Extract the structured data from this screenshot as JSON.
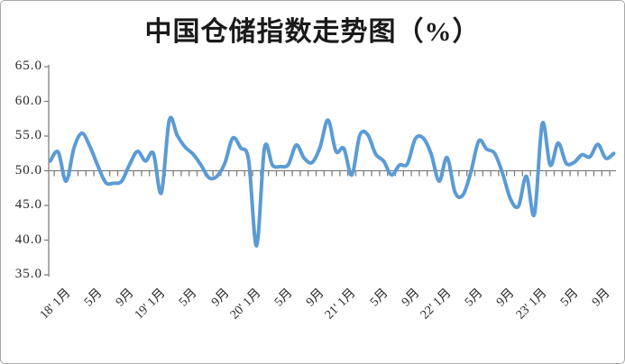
{
  "window": {
    "background": "#ffffff",
    "border_color": "#a9a9a9"
  },
  "chart": {
    "title": "中国仓储指数走势图（%）",
    "line_color": "#5B9BD5",
    "axis_color": "#7f7f7f",
    "text_color": "#262626",
    "y_axis": {
      "min": 35,
      "max": 65,
      "step": 5,
      "tick_labels": [
        "65.0",
        "60.0",
        "55.0",
        "50.0",
        "45.0",
        "40.0",
        "35.0"
      ],
      "x_axis_crosses_at": 50
    },
    "x_axis": {
      "labels": [
        {
          "text": "18' 1月",
          "index": 1
        },
        {
          "text": "5月",
          "index": 5
        },
        {
          "text": "9月",
          "index": 9
        },
        {
          "text": "19' 1月",
          "index": 13
        },
        {
          "text": "5月",
          "index": 17
        },
        {
          "text": "9月",
          "index": 21
        },
        {
          "text": "20' 1月",
          "index": 25
        },
        {
          "text": "5月",
          "index": 29
        },
        {
          "text": "9月",
          "index": 33
        },
        {
          "text": "21' 1月",
          "index": 37
        },
        {
          "text": "5月",
          "index": 41
        },
        {
          "text": "9月",
          "index": 45
        },
        {
          "text": "22' 1月",
          "index": 49
        },
        {
          "text": "5月",
          "index": 53
        },
        {
          "text": "9月",
          "index": 57
        },
        {
          "text": "23' 1月",
          "index": 61
        },
        {
          "text": "5月",
          "index": 65
        },
        {
          "text": "9月",
          "index": 69
        }
      ]
    }
  },
  "chart_data": {
    "type": "line",
    "title": "中国仓储指数走势图（%）",
    "series_name": "中国仓储指数",
    "unit": "%",
    "smoothed": true,
    "grid": false,
    "legend": "none",
    "ylim": [
      35,
      65
    ],
    "x_axis_crosses_y_at": 50,
    "months": [
      "2017-12",
      "2018-01",
      "2018-02",
      "2018-03",
      "2018-04",
      "2018-05",
      "2018-06",
      "2018-07",
      "2018-08",
      "2018-09",
      "2018-10",
      "2018-11",
      "2018-12",
      "2019-01",
      "2019-02",
      "2019-03",
      "2019-04",
      "2019-05",
      "2019-06",
      "2019-07",
      "2019-08",
      "2019-09",
      "2019-10",
      "2019-11",
      "2019-12",
      "2020-01",
      "2020-02",
      "2020-03",
      "2020-04",
      "2020-05",
      "2020-06",
      "2020-07",
      "2020-08",
      "2020-09",
      "2020-10",
      "2020-11",
      "2020-12",
      "2021-01",
      "2021-02",
      "2021-03",
      "2021-04",
      "2021-05",
      "2021-06",
      "2021-07",
      "2021-08",
      "2021-09",
      "2021-10",
      "2021-11",
      "2021-12",
      "2022-01",
      "2022-02",
      "2022-03",
      "2022-04",
      "2022-05",
      "2022-06",
      "2022-07",
      "2022-08",
      "2022-09",
      "2022-10",
      "2022-11",
      "2022-12",
      "2023-01",
      "2023-02",
      "2023-03",
      "2023-04",
      "2023-05",
      "2023-06",
      "2023-07",
      "2023-08",
      "2023-09",
      "2023-10",
      "2023-11"
    ],
    "values": [
      51.4,
      52.7,
      48.5,
      53.3,
      55.4,
      53.5,
      50.7,
      48.3,
      48.2,
      48.5,
      50.9,
      52.8,
      51.4,
      52.5,
      46.8,
      57.3,
      55.1,
      53.4,
      52.4,
      50.8,
      49.0,
      49.2,
      51.1,
      54.7,
      53.3,
      51.5,
      39.2,
      53.3,
      50.8,
      50.6,
      50.9,
      53.7,
      51.8,
      51.2,
      53.4,
      57.3,
      52.8,
      53.2,
      49.4,
      55.1,
      55.2,
      52.4,
      51.4,
      49.4,
      50.8,
      51.0,
      54.6,
      54.7,
      52.4,
      48.5,
      51.9,
      46.9,
      46.5,
      49.8,
      54.3,
      53.1,
      52.5,
      49.6,
      45.9,
      44.9,
      49.2,
      43.7,
      56.8,
      50.8,
      54.0,
      51.1,
      51.2,
      52.3,
      52.0,
      53.8,
      51.8,
      52.5
    ]
  }
}
